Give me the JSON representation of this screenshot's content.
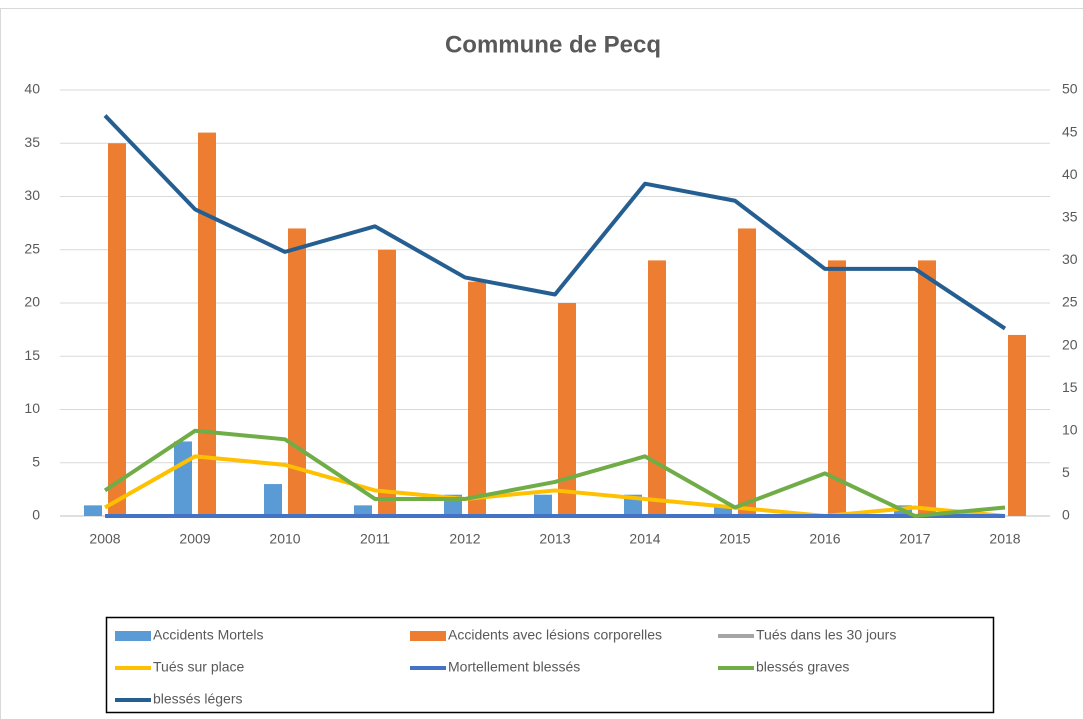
{
  "chart_data": {
    "type": "bar",
    "title": "Commune de Pecq",
    "categories": [
      "2008",
      "2009",
      "2010",
      "2011",
      "2012",
      "2013",
      "2014",
      "2015",
      "2016",
      "2017",
      "2018"
    ],
    "ylim": [
      0,
      40
    ],
    "yticks": [
      0,
      5,
      10,
      15,
      20,
      25,
      30,
      35,
      40
    ],
    "y2lim": [
      0,
      50
    ],
    "y2ticks": [
      0,
      5,
      10,
      15,
      20,
      25,
      30,
      35,
      40,
      45,
      50
    ],
    "grid": true,
    "series": [
      {
        "name": "Accidents Mortels",
        "type": "bar",
        "color": "#5b9bd5",
        "values": [
          1,
          7,
          3,
          1,
          2,
          2,
          2,
          1,
          0,
          1,
          0
        ]
      },
      {
        "name": "Accidents avec lésions corporelles",
        "type": "bar",
        "color": "#ed7d31",
        "values": [
          35,
          36,
          27,
          25,
          22,
          20,
          24,
          27,
          24,
          24,
          17
        ]
      },
      {
        "name": "Tués dans les 30 jours",
        "type": "line",
        "axis": "y2",
        "color": "#a5a5a5",
        "values": [
          0,
          0,
          0,
          0,
          0,
          0,
          0,
          0,
          0,
          0,
          0
        ]
      },
      {
        "name": "Tués sur place",
        "type": "line",
        "axis": "y2",
        "color": "#ffc000",
        "values": [
          1,
          7,
          6,
          3,
          2,
          3,
          2,
          1,
          0,
          1,
          0
        ]
      },
      {
        "name": "Mortellement blessés",
        "type": "line",
        "axis": "y2",
        "color": "#4472c4",
        "values": [
          0,
          0,
          0,
          0,
          0,
          0,
          0,
          0,
          0,
          0,
          0
        ]
      },
      {
        "name": "blessés graves",
        "type": "line",
        "axis": "y2",
        "color": "#70ad47",
        "values": [
          3,
          10,
          9,
          2,
          2,
          4,
          7,
          1,
          5,
          0,
          1
        ]
      },
      {
        "name": "blessés légers",
        "type": "line",
        "axis": "y2",
        "color": "#255e91",
        "values": [
          47,
          36,
          31,
          34,
          28,
          26,
          39,
          37,
          29,
          29,
          22
        ]
      }
    ]
  }
}
